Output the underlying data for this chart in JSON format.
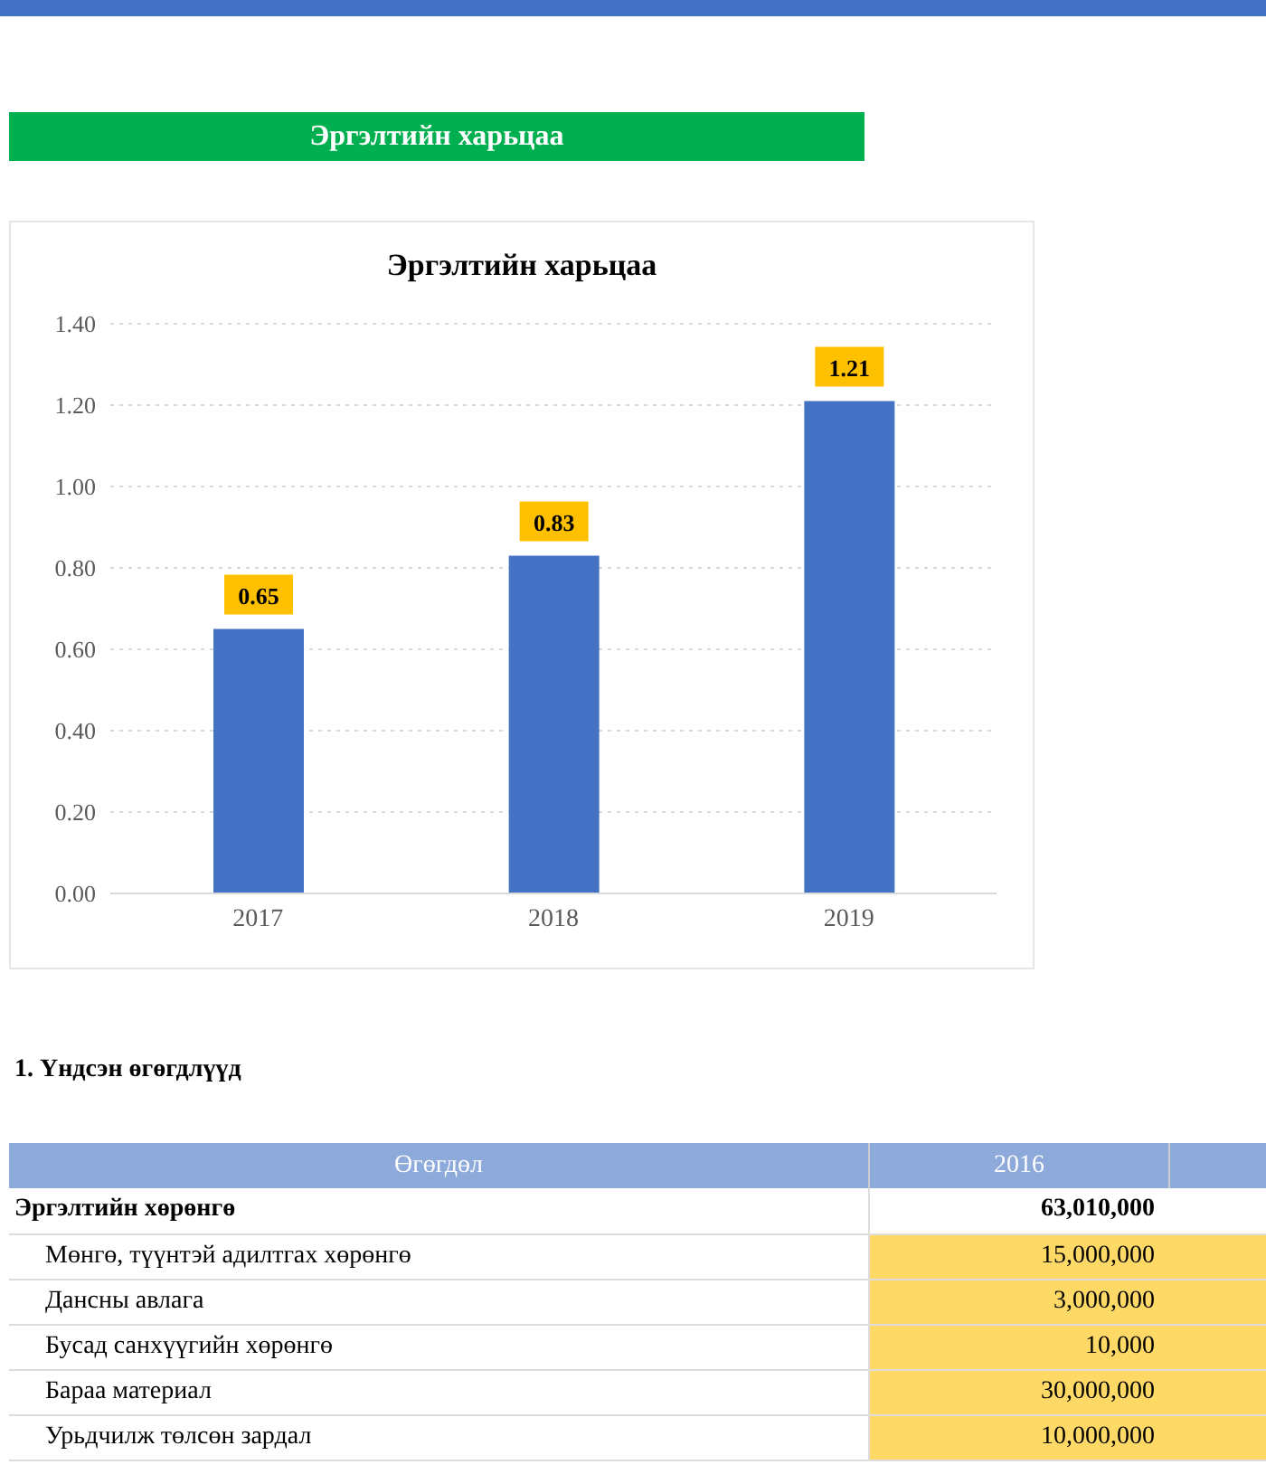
{
  "chart_data": {
    "type": "bar",
    "title": "Эргэлтийн харьцаа",
    "categories": [
      "2017",
      "2018",
      "2019"
    ],
    "values": [
      0.65,
      0.83,
      1.21
    ],
    "color": "#4472c4",
    "data_labels": true,
    "ylim": [
      0,
      1.4
    ],
    "yticks": [
      {
        "value": 0,
        "label": "0.00"
      },
      {
        "value": 0.2,
        "label": "0.20"
      },
      {
        "value": 0.4,
        "label": "0.40"
      },
      {
        "value": 0.6,
        "label": "0.60"
      },
      {
        "value": 0.8,
        "label": "0.80"
      },
      {
        "value": 1,
        "label": "1.00"
      },
      {
        "value": 1.2,
        "label": "1.20"
      },
      {
        "value": 1.4,
        "label": "1.40"
      }
    ],
    "grid": "y",
    "legend": false,
    "annotations": [
      "Эргэлтийн харьцаа",
      "1. Үндсэн өгөгдлүүд",
      "Өгөгдөл",
      "2016",
      "Эргэлтийн хөрөнгө",
      "63,010,000",
      "Мөнгө, түүнтэй адилтгах хөрөнгө",
      "15,000,000",
      "Дансны авлага",
      "3,000,000",
      "Бусад санхүүгийн хөрөнгө",
      "10,000",
      "Бараа материал",
      "30,000,000",
      "Урьдчилж төлсөн зардал",
      "10,000,000"
    ]
  }
}
